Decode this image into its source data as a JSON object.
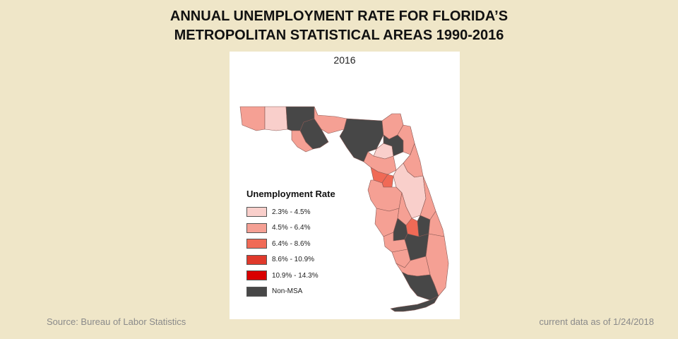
{
  "title_line1": "ANNUAL UNEMPLOYMENT RATE FOR FLORIDA’S",
  "title_line2": "METROPOLITAN STATISTICAL AREAS 1990-2016",
  "map": {
    "year": "2016",
    "legend": {
      "title": "Unemployment Rate",
      "items": [
        {
          "label": "2.3% - 4.5%",
          "color": "#f9cfcb"
        },
        {
          "label": "4.5% - 6.4%",
          "color": "#f5a094"
        },
        {
          "label": "6.4% - 8.6%",
          "color": "#f06a56"
        },
        {
          "label": "8.6% - 10.9%",
          "color": "#e0392b"
        },
        {
          "label": "10.9% - 14.3%",
          "color": "#d90000"
        },
        {
          "label": "Non-MSA",
          "color": "#474747"
        }
      ]
    }
  },
  "footer": {
    "source": "Source: Bureau of Labor Statistics",
    "as_of": "current data as of 1/24/2018"
  }
}
